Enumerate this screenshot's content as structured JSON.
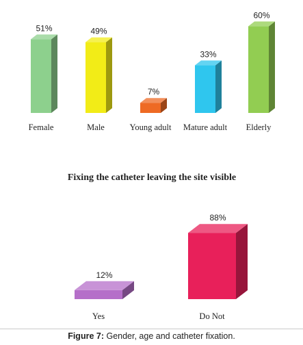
{
  "chart_data": [
    {
      "type": "bar",
      "style": "3d",
      "title": "",
      "xlabel": "",
      "ylabel": "",
      "ylim": [
        0,
        100
      ],
      "grid": false,
      "legend": "none",
      "categories": [
        "Female",
        "Male",
        "Young adult",
        "Mature adult",
        "Elderly"
      ],
      "values": [
        51,
        49,
        7,
        33,
        60
      ],
      "value_labels": [
        "51%",
        "49%",
        "7%",
        "33%",
        "60%"
      ],
      "colors": [
        "#8dd08d",
        "#f2ec17",
        "#ee6a24",
        "#2fc6ee",
        "#92cd52"
      ]
    },
    {
      "type": "bar",
      "style": "3d",
      "title": "Fixing the catheter leaving the site visible",
      "xlabel": "",
      "ylabel": "",
      "ylim": [
        0,
        100
      ],
      "grid": false,
      "legend": "none",
      "categories": [
        "Yes",
        "Do Not"
      ],
      "values": [
        12,
        88
      ],
      "value_labels": [
        "12%",
        "88%"
      ],
      "colors": [
        "#b56fc9",
        "#e8205a"
      ]
    }
  ],
  "caption": {
    "label": "Figure 7:",
    "text": " Gender, age and catheter fixation."
  }
}
